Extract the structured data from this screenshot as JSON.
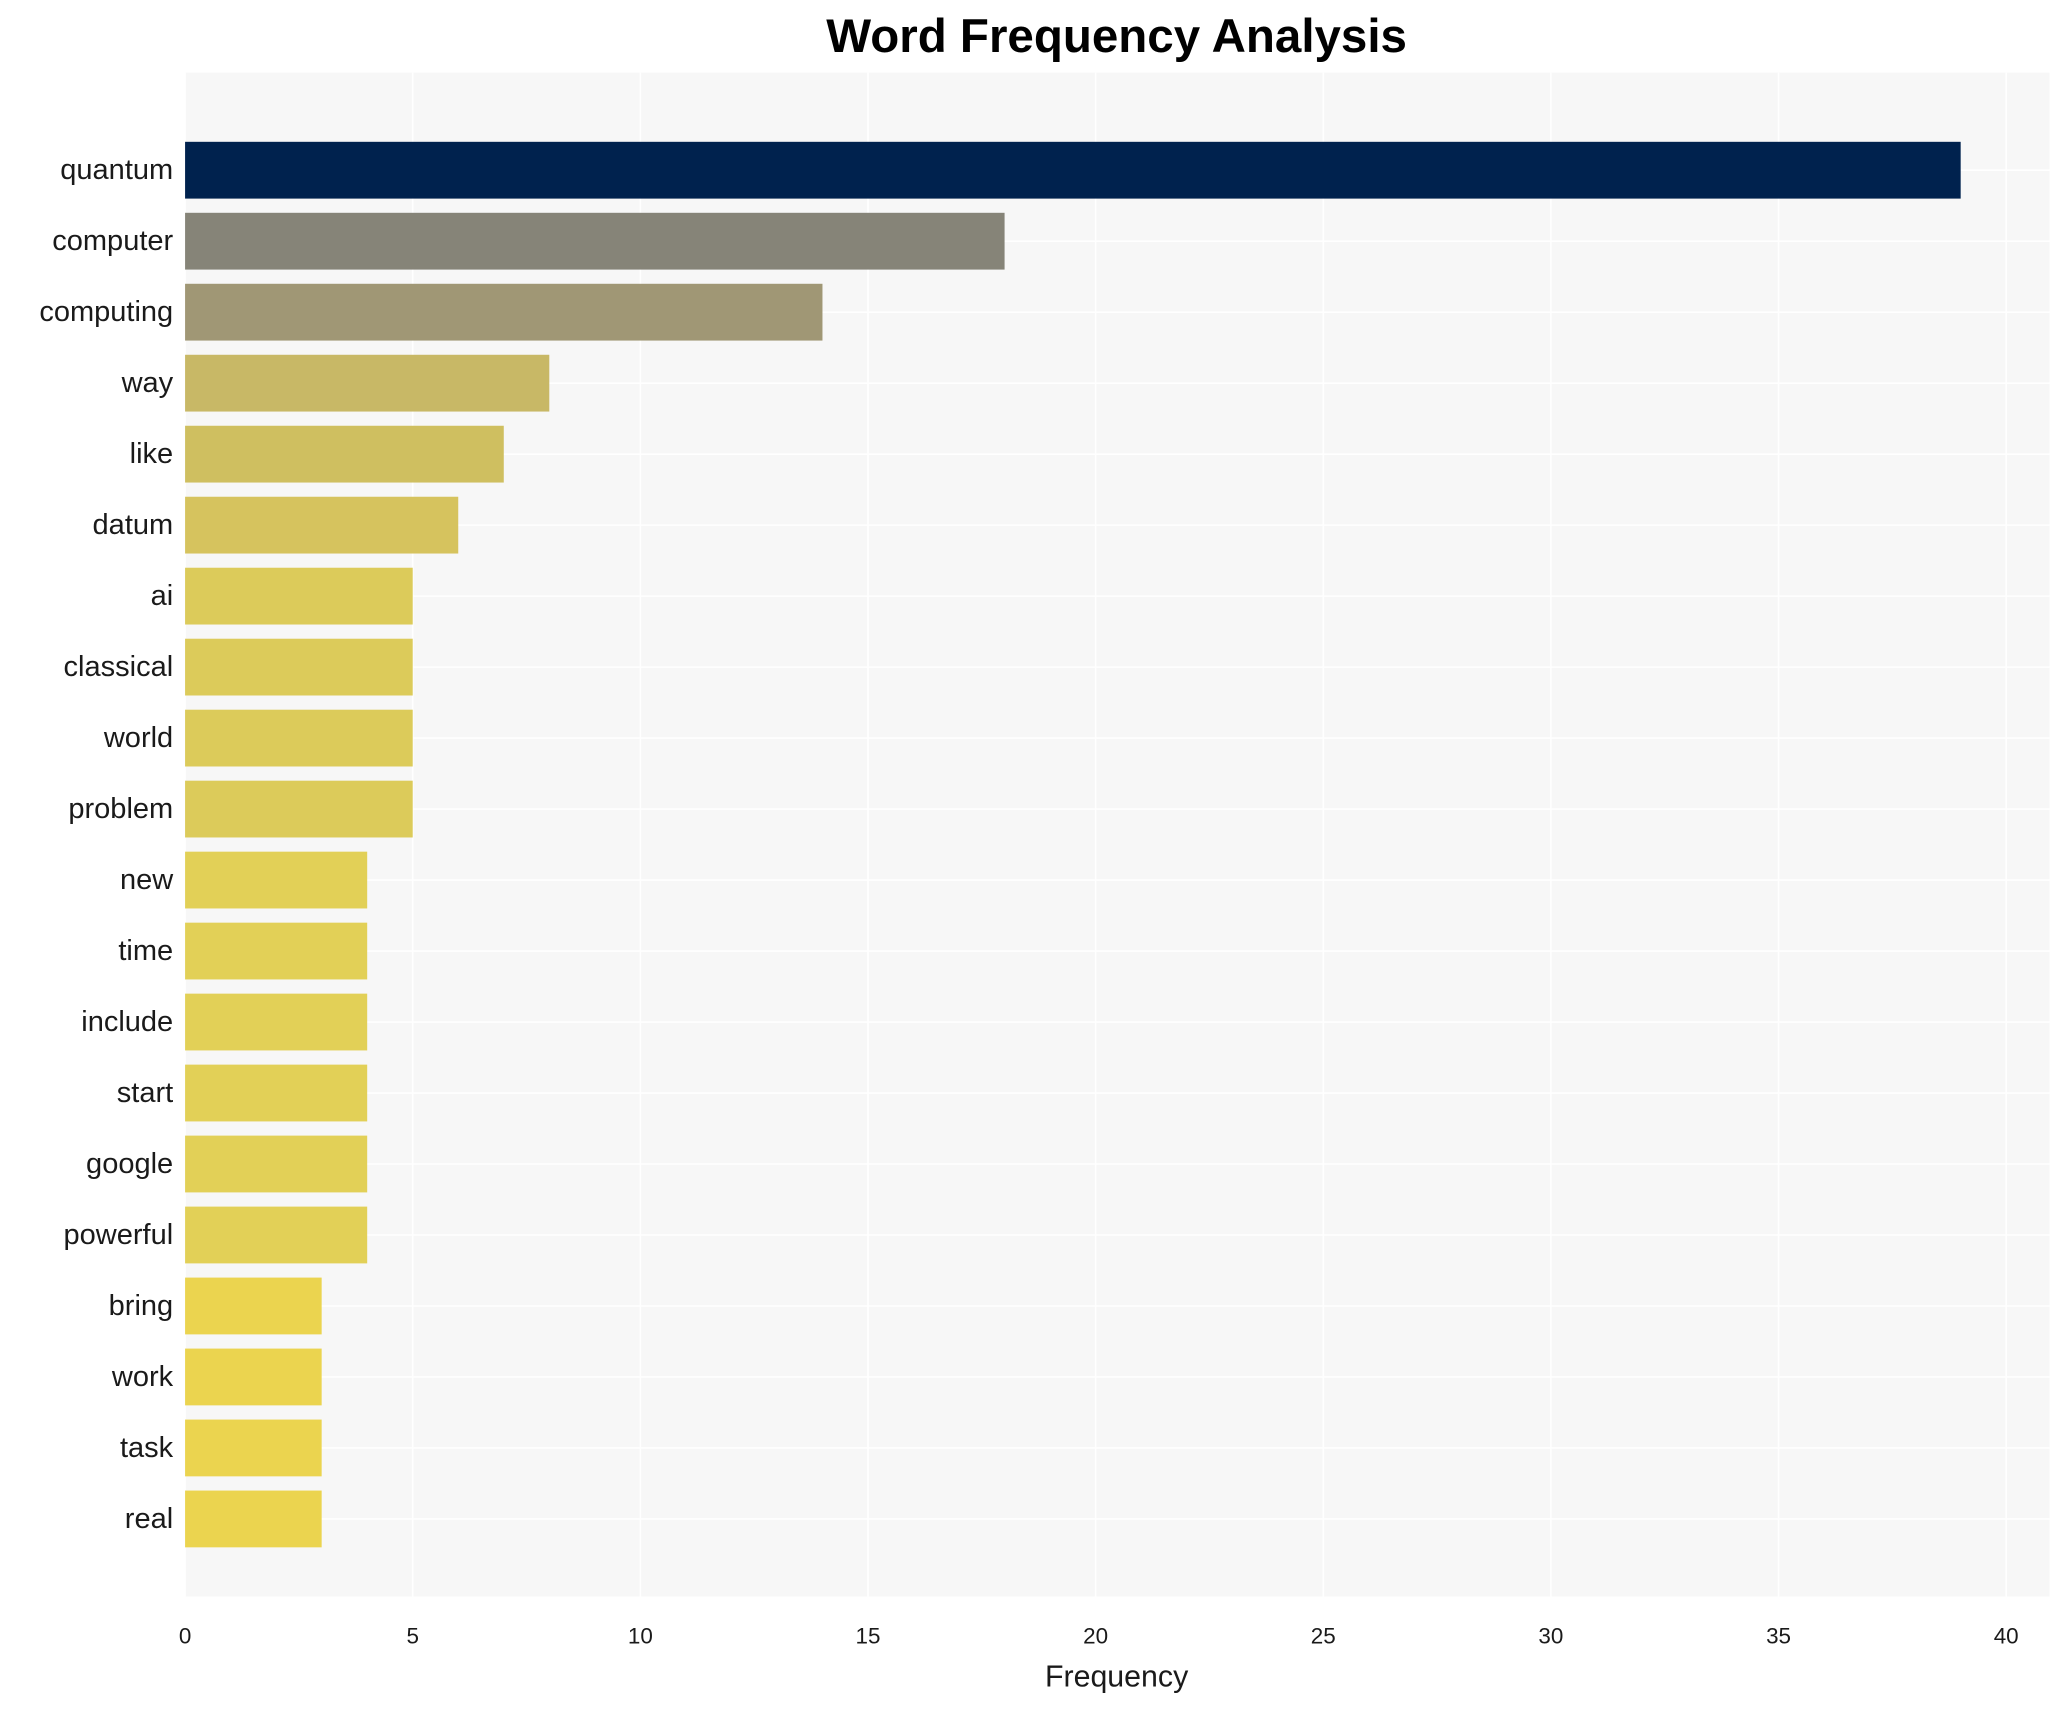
{
  "chart_data": {
    "type": "barh",
    "title": "Word Frequency Analysis",
    "x_label": "Frequency",
    "categories": [
      "quantum",
      "computer",
      "computing",
      "way",
      "like",
      "datum",
      "ai",
      "classical",
      "world",
      "problem",
      "new",
      "time",
      "include",
      "start",
      "google",
      "powerful",
      "bring",
      "work",
      "task",
      "real"
    ],
    "values": [
      39,
      18,
      14,
      8,
      7,
      6,
      5,
      5,
      5,
      5,
      4,
      4,
      4,
      4,
      4,
      4,
      3,
      3,
      3,
      3
    ],
    "colors": [
      "#00224e",
      "#868478",
      "#a09775",
      "#c8b866",
      "#cfbf60",
      "#d6c35e",
      "#dccb5a",
      "#dccb5a",
      "#dccb5a",
      "#dccb5a",
      "#e2d057",
      "#e2d057",
      "#e2d057",
      "#e2d057",
      "#e2d057",
      "#e2d057",
      "#ebd44f",
      "#ebd44f",
      "#ebd44f",
      "#ebd44f"
    ],
    "xlim": [
      0,
      40.95
    ],
    "xticks": [
      0,
      5,
      10,
      15,
      20,
      25,
      30,
      35,
      40
    ],
    "grid": true
  }
}
